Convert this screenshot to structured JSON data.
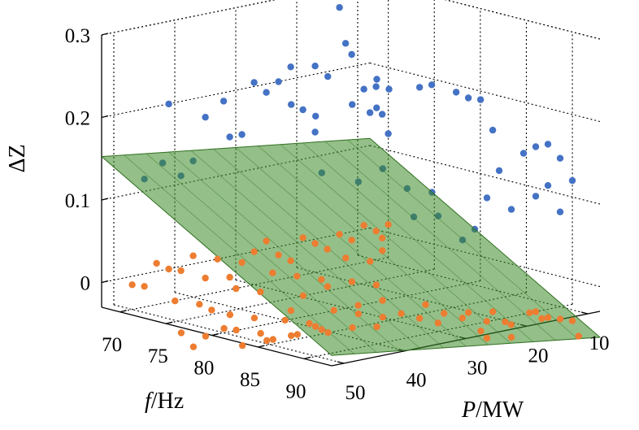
{
  "chart_data": {
    "type": "scatter",
    "projection": "3d",
    "title": "",
    "axes": {
      "f": {
        "label_var": "f",
        "label_unit": "/Hz",
        "range": [
          68,
          93
        ],
        "ticks": [
          70,
          75,
          80,
          85,
          90
        ]
      },
      "P": {
        "label_var": "P",
        "label_unit": "/MW",
        "range": [
          8,
          52
        ],
        "ticks": [
          10,
          20,
          30,
          40,
          50
        ]
      },
      "z": {
        "label": "ΔZ",
        "range": [
          -0.03,
          0.3
        ],
        "ticks": [
          0,
          0.1,
          0.2,
          0.3
        ],
        "tick_labels": [
          "0",
          "0.1",
          "0.2",
          "0.3"
        ]
      }
    },
    "grid": true,
    "legend": "none",
    "colors": {
      "upper": "#4472c4",
      "lower": "#ed7d31",
      "plane": "#3c8a28",
      "plane_edge": "#2f6f1e",
      "below_plane": "#1f5e1a"
    },
    "plane": {
      "description": "fitted decision plane",
      "z_at_f70_P10": 0.097,
      "z_at_f70_P50": 0.138,
      "slope_P": 0.001,
      "slope_f": -0.0068
    },
    "series": [
      {
        "role": "upper",
        "points": [
          [
            70,
            45,
            0.14
          ],
          [
            70,
            42,
            0.12
          ],
          [
            70,
            48,
            0.125
          ],
          [
            70,
            40,
            0.135
          ],
          [
            70,
            38,
            0.185
          ],
          [
            70,
            35,
            0.2
          ],
          [
            70,
            34,
            0.155
          ],
          [
            70,
            32,
            0.155
          ],
          [
            70,
            30,
            0.215
          ],
          [
            70,
            28,
            0.2
          ],
          [
            70,
            26,
            0.21
          ],
          [
            70,
            22,
            0.17
          ],
          [
            70,
            20,
            0.14
          ],
          [
            70,
            17,
            0.3
          ],
          [
            70,
            16,
            0.285
          ],
          [
            70,
            15,
            0.24
          ],
          [
            70,
            14,
            0.225
          ],
          [
            70,
            12,
            0.18
          ],
          [
            70,
            11,
            0.15
          ],
          [
            70,
            10,
            0.18
          ],
          [
            70,
            9,
            0.145
          ],
          [
            70,
            8,
            0.12
          ],
          [
            70,
            20,
            0.22
          ],
          [
            70,
            24,
            0.225
          ],
          [
            70,
            44,
            0.21
          ],
          [
            78,
            36,
            0.22
          ],
          [
            78,
            30,
            0.245
          ],
          [
            78,
            26,
            0.205
          ],
          [
            78,
            22,
            0.195
          ],
          [
            78,
            32,
            0.2
          ],
          [
            80,
            24,
            0.13
          ],
          [
            80,
            20,
            0.1
          ],
          [
            80,
            28,
            0.12
          ],
          [
            80,
            34,
            0.14
          ],
          [
            82,
            28,
            0.25
          ],
          [
            82,
            26,
            0.235
          ],
          [
            84,
            24,
            0.24
          ],
          [
            84,
            22,
            0.24
          ],
          [
            84,
            18,
            0.225
          ],
          [
            84,
            16,
            0.215
          ],
          [
            84,
            14,
            0.21
          ],
          [
            84,
            12,
            0.17
          ],
          [
            90,
            20,
            0.15
          ],
          [
            90,
            16,
            0.165
          ],
          [
            90,
            14,
            0.17
          ],
          [
            90,
            12,
            0.17
          ],
          [
            90,
            10,
            0.15
          ],
          [
            90,
            22,
            0.12
          ],
          [
            90,
            18,
            0.1
          ],
          [
            90,
            14,
            0.11
          ],
          [
            90,
            10,
            0.085
          ],
          [
            90,
            24,
            0.085
          ],
          [
            90,
            26,
            0.075
          ],
          [
            90,
            30,
            0.11
          ],
          [
            90,
            34,
            0.115
          ],
          [
            88,
            28,
            0.13
          ],
          [
            90,
            8,
            0.12
          ],
          [
            90,
            12,
            0.12
          ]
        ]
      },
      {
        "role": "lower",
        "points": [
          [
            70,
            50,
            0.0
          ],
          [
            70,
            48,
            -0.005
          ],
          [
            70,
            46,
            0.02
          ],
          [
            70,
            44,
            0.01
          ],
          [
            70,
            42,
            0.005
          ],
          [
            70,
            40,
            0.02
          ],
          [
            70,
            38,
            -0.01
          ],
          [
            70,
            36,
            0.01
          ],
          [
            70,
            34,
            -0.015
          ],
          [
            70,
            32,
            0.0
          ],
          [
            70,
            30,
            0.01
          ],
          [
            70,
            28,
            0.02
          ],
          [
            70,
            26,
            0.0
          ],
          [
            70,
            24,
            -0.01
          ],
          [
            70,
            22,
            0.015
          ],
          [
            70,
            20,
            0.005
          ],
          [
            70,
            18,
            -0.005
          ],
          [
            70,
            16,
            0.01
          ],
          [
            70,
            14,
            0.0
          ],
          [
            70,
            12,
            0.015
          ],
          [
            70,
            10,
            0.005
          ],
          [
            70,
            9,
            -0.005
          ],
          [
            70,
            8,
            0.01
          ],
          [
            72,
            46,
            -0.02
          ],
          [
            72,
            42,
            -0.03
          ],
          [
            72,
            40,
            -0.04
          ],
          [
            72,
            36,
            -0.02
          ],
          [
            72,
            32,
            -0.03
          ],
          [
            72,
            30,
            -0.01
          ],
          [
            72,
            26,
            -0.02
          ],
          [
            72,
            22,
            -0.03
          ],
          [
            72,
            18,
            -0.01
          ],
          [
            72,
            14,
            -0.02
          ],
          [
            72,
            12,
            -0.01
          ],
          [
            74,
            48,
            -0.05
          ],
          [
            74,
            46,
            -0.07
          ],
          [
            74,
            44,
            -0.06
          ],
          [
            74,
            40,
            -0.04
          ],
          [
            74,
            36,
            -0.05
          ],
          [
            74,
            30,
            -0.05
          ],
          [
            74,
            28,
            -0.035
          ],
          [
            74,
            24,
            -0.03
          ],
          [
            74,
            20,
            -0.03
          ],
          [
            74,
            16,
            -0.04
          ],
          [
            76,
            44,
            -0.045
          ],
          [
            76,
            42,
            -0.05
          ],
          [
            76,
            38,
            -0.06
          ],
          [
            76,
            34,
            -0.05
          ],
          [
            76,
            30,
            -0.06
          ],
          [
            76,
            26,
            -0.05
          ],
          [
            76,
            22,
            -0.05
          ],
          [
            76,
            18,
            -0.05
          ],
          [
            78,
            44,
            -0.06
          ],
          [
            78,
            40,
            -0.06
          ],
          [
            78,
            36,
            -0.06
          ],
          [
            78,
            32,
            -0.055
          ],
          [
            80,
            42,
            -0.05
          ],
          [
            80,
            38,
            -0.05
          ],
          [
            80,
            34,
            -0.05
          ],
          [
            80,
            28,
            -0.04
          ],
          [
            80,
            24,
            -0.05
          ],
          [
            82,
            36,
            -0.045
          ],
          [
            82,
            32,
            -0.045
          ],
          [
            82,
            28,
            -0.05
          ],
          [
            82,
            24,
            -0.04
          ],
          [
            82,
            20,
            -0.035
          ],
          [
            84,
            24,
            -0.04
          ],
          [
            84,
            20,
            -0.04
          ],
          [
            84,
            16,
            -0.045
          ],
          [
            84,
            12,
            -0.05
          ],
          [
            86,
            24,
            -0.04
          ],
          [
            86,
            20,
            -0.04
          ],
          [
            86,
            16,
            -0.05
          ],
          [
            86,
            12,
            -0.06
          ],
          [
            88,
            20,
            -0.05
          ],
          [
            88,
            16,
            -0.045
          ],
          [
            88,
            12,
            -0.04
          ],
          [
            88,
            10,
            -0.05
          ],
          [
            90,
            14,
            -0.03
          ],
          [
            90,
            12,
            -0.04
          ],
          [
            90,
            10,
            -0.045
          ],
          [
            90,
            8,
            -0.05
          ],
          [
            90,
            18,
            -0.055
          ],
          [
            90,
            22,
            -0.05
          ],
          [
            92,
            10,
            -0.06
          ]
        ]
      }
    ]
  }
}
